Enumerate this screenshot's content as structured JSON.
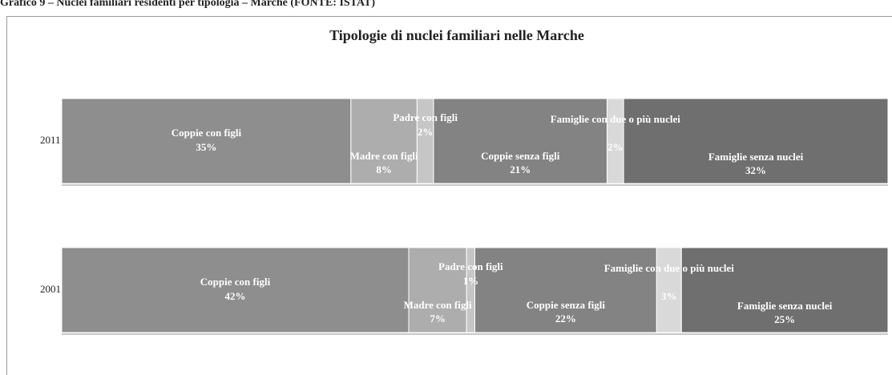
{
  "chart_data": {
    "type": "stacked-bar-horizontal",
    "caption": "Grafico 9 – Nuclei familiari residenti per tipologia – Marche (FONTE: ISTAT)",
    "title": "Tipologie di nuclei familiari nelle Marche",
    "categories": [
      "2011",
      "2001"
    ],
    "xlim": [
      0,
      100
    ],
    "series": [
      {
        "name": "Coppie con figli",
        "color": "#8e8e8e",
        "values": [
          35,
          42
        ],
        "value_labels": [
          "35%",
          "42%"
        ]
      },
      {
        "name": "Madre con figli",
        "color": "#adadad",
        "values": [
          8,
          7
        ],
        "value_labels": [
          "8%",
          "7%"
        ]
      },
      {
        "name": "Padre con figli",
        "color": "#c6c6c6",
        "values": [
          2,
          1
        ],
        "value_labels": [
          "2%",
          "1%"
        ]
      },
      {
        "name": "Coppie senza figli",
        "color": "#838383",
        "values": [
          21,
          22
        ],
        "value_labels": [
          "21%",
          "22%"
        ]
      },
      {
        "name": "Famiglie con due o più nuclei",
        "color": "#d9d9d9",
        "values": [
          2,
          3
        ],
        "value_labels": [
          "2%",
          "3%"
        ]
      },
      {
        "name": "Famiglie senza nuclei",
        "color": "#6f6f6f",
        "values": [
          32,
          25
        ],
        "value_labels": [
          "32%",
          "25%"
        ]
      }
    ]
  }
}
